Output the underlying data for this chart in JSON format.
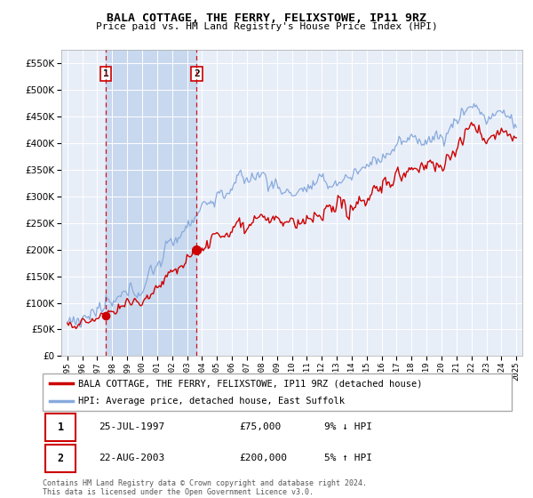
{
  "title": "BALA COTTAGE, THE FERRY, FELIXSTOWE, IP11 9RZ",
  "subtitle": "Price paid vs. HM Land Registry's House Price Index (HPI)",
  "ylim": [
    0,
    575000
  ],
  "yticks": [
    0,
    50000,
    100000,
    150000,
    200000,
    250000,
    300000,
    350000,
    400000,
    450000,
    500000,
    550000
  ],
  "hpi_color": "#88aadd",
  "price_color": "#cc0000",
  "marker_color": "#cc0000",
  "sale1_date": 1997.57,
  "sale1_price": 75000,
  "sale2_date": 2003.65,
  "sale2_price": 200000,
  "annotation1_label": "1",
  "annotation2_label": "2",
  "legend_property": "BALA COTTAGE, THE FERRY, FELIXSTOWE, IP11 9RZ (detached house)",
  "legend_hpi": "HPI: Average price, detached house, East Suffolk",
  "table_row1": [
    "1",
    "25-JUL-1997",
    "£75,000",
    "9% ↓ HPI"
  ],
  "table_row2": [
    "2",
    "22-AUG-2003",
    "£200,000",
    "5% ↑ HPI"
  ],
  "footnote": "Contains HM Land Registry data © Crown copyright and database right 2024.\nThis data is licensed under the Open Government Licence v3.0.",
  "plot_bg_color": "#e8eef8",
  "grid_color": "#ffffff",
  "shade_color": "#c8d8ee"
}
